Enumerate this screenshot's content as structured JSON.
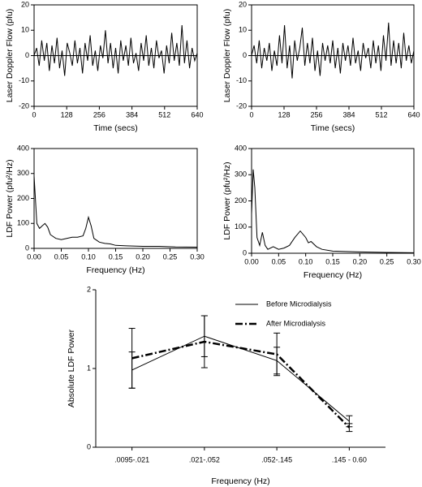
{
  "chart_data": [
    {
      "type": "line",
      "xlabel": "Time (secs)",
      "ylabel": "Laser Doppler Flow (pfu)",
      "frame": true,
      "zero_line": true,
      "color": "#000000",
      "x": [
        0,
        10,
        20,
        30,
        40,
        50,
        60,
        70,
        80,
        90,
        100,
        110,
        120,
        130,
        140,
        150,
        160,
        170,
        180,
        190,
        200,
        210,
        220,
        230,
        240,
        250,
        260,
        270,
        280,
        290,
        300,
        310,
        320,
        330,
        340,
        350,
        360,
        370,
        380,
        390,
        400,
        410,
        420,
        430,
        440,
        450,
        460,
        470,
        480,
        490,
        500,
        510,
        520,
        530,
        540,
        550,
        560,
        570,
        580,
        590,
        600,
        610,
        620,
        630,
        640
      ],
      "values": [
        0,
        3,
        -4,
        6,
        -2,
        5,
        -6,
        4,
        -3,
        7,
        -5,
        2,
        -8,
        5,
        1,
        -4,
        6,
        -3,
        3,
        -7,
        5,
        -2,
        8,
        -4,
        2,
        -6,
        4,
        -1,
        10,
        -3,
        5,
        -5,
        3,
        -7,
        6,
        -2,
        4,
        -4,
        7,
        -3,
        1,
        -6,
        5,
        -2,
        8,
        -4,
        3,
        -5,
        6,
        -1,
        2,
        -7,
        4,
        -3,
        9,
        -2,
        5,
        -4,
        12,
        -3,
        6,
        -5,
        3,
        -2,
        1
      ],
      "xlim": [
        0,
        640
      ],
      "xticks": [
        0,
        128,
        256,
        384,
        512,
        640
      ],
      "ylim": [
        -20,
        20
      ],
      "yticks": [
        -20,
        -10,
        0,
        10,
        20
      ]
    },
    {
      "type": "line",
      "xlabel": "Time (secs)",
      "ylabel": "Laser Doppler Flow (pfu)",
      "frame": true,
      "zero_line": true,
      "color": "#000000",
      "x": [
        0,
        10,
        20,
        30,
        40,
        50,
        60,
        70,
        80,
        90,
        100,
        110,
        120,
        130,
        140,
        150,
        160,
        170,
        180,
        190,
        200,
        210,
        220,
        230,
        240,
        250,
        260,
        270,
        280,
        290,
        300,
        310,
        320,
        330,
        340,
        350,
        360,
        370,
        380,
        390,
        400,
        410,
        420,
        430,
        440,
        450,
        460,
        470,
        480,
        490,
        500,
        510,
        520,
        530,
        540,
        550,
        560,
        570,
        580,
        590,
        600,
        610,
        620,
        630,
        640
      ],
      "values": [
        0,
        4,
        -3,
        6,
        -5,
        3,
        -2,
        5,
        -6,
        2,
        -4,
        8,
        -3,
        12,
        -5,
        4,
        -9,
        6,
        -2,
        3,
        11,
        -4,
        5,
        -3,
        7,
        -6,
        2,
        -8,
        5,
        -2,
        4,
        -3,
        6,
        -5,
        3,
        -7,
        5,
        -2,
        4,
        -4,
        7,
        -3,
        2,
        -6,
        5,
        -1,
        3,
        -5,
        6,
        -3,
        4,
        -6,
        8,
        -2,
        13,
        -4,
        6,
        -3,
        5,
        -5,
        9,
        -2,
        4,
        -3,
        2
      ],
      "xlim": [
        0,
        640
      ],
      "xticks": [
        0,
        128,
        256,
        384,
        512,
        640
      ],
      "ylim": [
        -20,
        20
      ],
      "yticks": [
        -20,
        -10,
        0,
        10,
        20
      ]
    },
    {
      "type": "line",
      "xlabel": "Frequency (Hz)",
      "ylabel": "LDF Power (pfu²/Hz)",
      "frame": true,
      "color": "#000000",
      "x": [
        0,
        0.005,
        0.01,
        0.015,
        0.02,
        0.025,
        0.03,
        0.04,
        0.05,
        0.06,
        0.07,
        0.08,
        0.09,
        0.095,
        0.1,
        0.105,
        0.11,
        0.12,
        0.13,
        0.14,
        0.15,
        0.17,
        0.2,
        0.23,
        0.26,
        0.3
      ],
      "values": [
        290,
        100,
        80,
        90,
        100,
        85,
        55,
        40,
        35,
        40,
        45,
        45,
        50,
        80,
        125,
        90,
        40,
        25,
        20,
        18,
        12,
        10,
        8,
        8,
        6,
        5
      ],
      "xlim": [
        0,
        0.3
      ],
      "xticks": [
        {
          "value": 0,
          "label": "0.00"
        },
        {
          "value": 0.05,
          "label": "0.05"
        },
        {
          "value": 0.1,
          "label": "0.10"
        },
        {
          "value": 0.15,
          "label": "0.15"
        },
        {
          "value": 0.2,
          "label": "0.20"
        },
        {
          "value": 0.25,
          "label": "0.25"
        },
        {
          "value": 0.3,
          "label": "0.30"
        }
      ],
      "ylim": [
        0,
        400
      ],
      "yticks": [
        0,
        100,
        200,
        300,
        400
      ]
    },
    {
      "type": "line",
      "xlabel": "Frequency (Hz)",
      "ylabel": "LDF Power (pfu²/Hz)",
      "frame": true,
      "color": "#000000",
      "x": [
        0,
        0.003,
        0.006,
        0.01,
        0.015,
        0.02,
        0.025,
        0.03,
        0.04,
        0.05,
        0.06,
        0.07,
        0.08,
        0.09,
        0.1,
        0.105,
        0.11,
        0.12,
        0.13,
        0.15,
        0.2,
        0.25,
        0.3
      ],
      "values": [
        150,
        320,
        250,
        60,
        30,
        80,
        30,
        15,
        25,
        15,
        20,
        30,
        60,
        85,
        60,
        40,
        45,
        25,
        15,
        8,
        5,
        3,
        2
      ],
      "xlim": [
        0,
        0.3
      ],
      "xticks": [
        {
          "value": 0,
          "label": "0.00"
        },
        {
          "value": 0.05,
          "label": "0.05"
        },
        {
          "value": 0.1,
          "label": "0.10"
        },
        {
          "value": 0.15,
          "label": "0.15"
        },
        {
          "value": 0.2,
          "label": "0.20"
        },
        {
          "value": 0.25,
          "label": "0.25"
        },
        {
          "value": 0.3,
          "label": "0.30"
        }
      ],
      "ylim": [
        0,
        400
      ],
      "yticks": [
        0,
        100,
        200,
        300,
        400
      ]
    },
    {
      "type": "line",
      "xlabel": "Frequency (Hz)",
      "ylabel": "Absolute LDF Power",
      "frame": false,
      "legend": "upper right",
      "categories": [
        ".0095-.021",
        ".021-.052",
        ".052-.145",
        ".145 - 0.60"
      ],
      "series": [
        {
          "name": "Before Microdialysis",
          "color": "#000000",
          "width": 1,
          "dash": "none",
          "values": [
            0.98,
            1.41,
            1.1,
            0.33
          ],
          "errors": [
            0.23,
            0.26,
            0.17,
            0.07
          ]
        },
        {
          "name": "After Microdialysis",
          "color": "#000000",
          "width": 2.5,
          "dash": "9,3,2,3",
          "values": [
            1.13,
            1.34,
            1.18,
            0.25
          ],
          "errors": [
            0.38,
            0.33,
            0.27,
            0.05
          ]
        }
      ],
      "ylim": [
        0,
        2
      ],
      "yticks": [
        0,
        1,
        2
      ]
    }
  ]
}
